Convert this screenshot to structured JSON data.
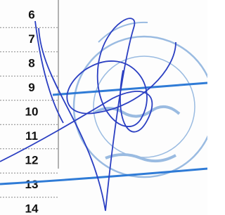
{
  "table": {
    "row_numbers": [
      6,
      7,
      8,
      9,
      10,
      11,
      12,
      13,
      14
    ]
  }
}
